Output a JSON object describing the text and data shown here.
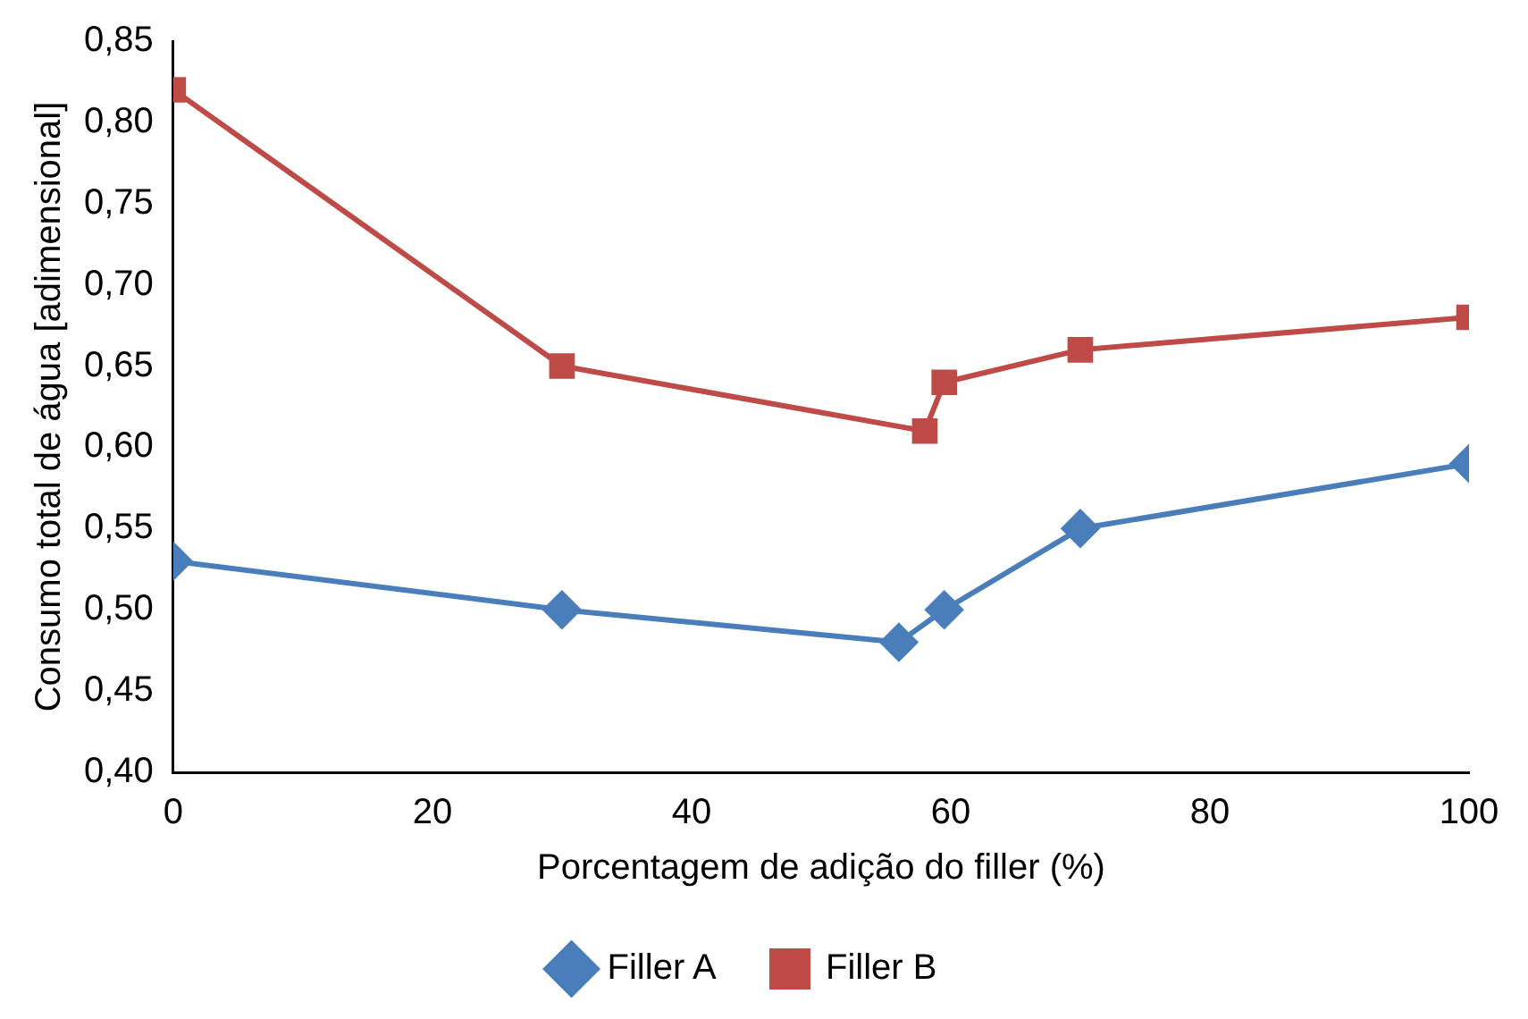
{
  "chart_data": {
    "type": "line",
    "xlabel": "Porcentagem de adição do filler (%)",
    "ylabel": "Consumo total de água [adimensional]",
    "xlim": [
      0,
      100
    ],
    "xticks": [
      0,
      20,
      40,
      60,
      80,
      100
    ],
    "ylim": [
      0.4,
      0.85
    ],
    "yticks": [
      {
        "value": 0.4,
        "label": "0,40"
      },
      {
        "value": 0.45,
        "label": "0,45"
      },
      {
        "value": 0.5,
        "label": "0,50"
      },
      {
        "value": 0.55,
        "label": "0,55"
      },
      {
        "value": 0.6,
        "label": "0,60"
      },
      {
        "value": 0.65,
        "label": "0,65"
      },
      {
        "value": 0.7,
        "label": "0,70"
      },
      {
        "value": 0.75,
        "label": "0,75"
      },
      {
        "value": 0.8,
        "label": "0,80"
      },
      {
        "value": 0.85,
        "label": "0,85"
      }
    ],
    "grid": false,
    "legend": "bottom",
    "line_style": "solid",
    "series": [
      {
        "name": "Filler A",
        "color": "#4a7ebb",
        "marker": "diamond",
        "x": [
          0,
          30,
          56,
          59.5,
          70,
          100
        ],
        "values": [
          0.53,
          0.5,
          0.48,
          0.5,
          0.55,
          0.59
        ]
      },
      {
        "name": "Filler B",
        "color": "#be4b48",
        "marker": "square",
        "x": [
          0,
          30,
          58,
          59.5,
          70,
          100
        ],
        "values": [
          0.82,
          0.65,
          0.61,
          0.64,
          0.66,
          0.68
        ]
      }
    ]
  }
}
